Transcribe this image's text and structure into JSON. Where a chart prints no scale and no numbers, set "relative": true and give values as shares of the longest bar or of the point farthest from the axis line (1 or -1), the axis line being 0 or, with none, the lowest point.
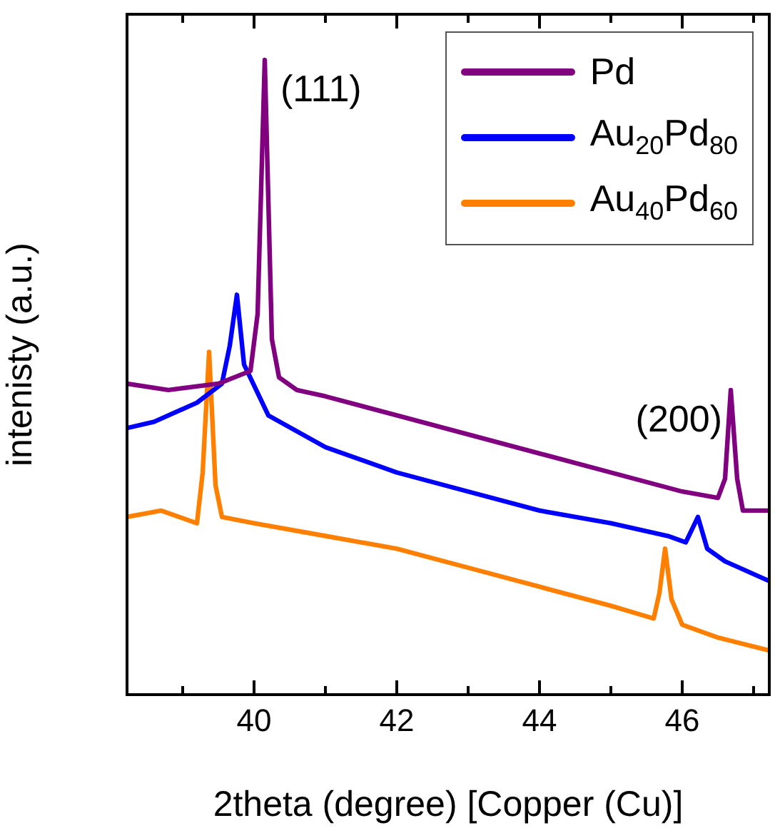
{
  "chart_data": {
    "type": "line",
    "relative": true,
    "xlabel": "2theta (degree) [Copper (Cu)]",
    "ylabel": "intenisty (a.u.)",
    "xlim": [
      38.22,
      47.22
    ],
    "xticks": [
      {
        "value": 39,
        "label": null
      },
      40,
      {
        "value": 41,
        "label": null
      },
      42,
      {
        "value": 43,
        "label": null
      },
      44,
      {
        "value": 45,
        "label": null
      },
      46,
      {
        "value": 47,
        "label": null
      }
    ],
    "tick_labels": "x",
    "legend": "top right",
    "line_style": "solid",
    "annotations": [
      {
        "text": "(111)",
        "x": 40.15,
        "y": 1.0
      },
      {
        "text": "(200)",
        "x": 46.68,
        "y": 0.48
      }
    ],
    "series": [
      {
        "name": "Pd",
        "color": "#800080",
        "x": [
          38.22,
          38.8,
          39.5,
          39.95,
          40.05,
          40.15,
          40.25,
          40.35,
          40.6,
          41,
          42,
          43,
          44,
          45,
          46,
          46.5,
          46.6,
          46.68,
          46.77,
          46.85,
          47.2
        ],
        "values": [
          0.49,
          0.48,
          0.49,
          0.51,
          0.6,
          1.0,
          0.56,
          0.5,
          0.48,
          0.47,
          0.44,
          0.41,
          0.38,
          0.35,
          0.32,
          0.31,
          0.34,
          0.48,
          0.34,
          0.29,
          0.29
        ]
      },
      {
        "name": "Au$_{20}$Pd$_{80}$",
        "color": "#0000ff",
        "x": [
          38.22,
          38.6,
          39.2,
          39.55,
          39.66,
          39.76,
          39.86,
          40.2,
          41,
          42,
          43,
          44,
          45,
          45.8,
          46.05,
          46.22,
          46.35,
          46.6,
          47.2
        ],
        "values": [
          0.42,
          0.43,
          0.46,
          0.49,
          0.55,
          0.63,
          0.52,
          0.44,
          0.39,
          0.35,
          0.32,
          0.29,
          0.27,
          0.25,
          0.24,
          0.28,
          0.23,
          0.21,
          0.18
        ]
      },
      {
        "name": "Au$_{40}$Pd$_{60}$",
        "color": "#ff8000",
        "x": [
          38.22,
          38.7,
          39.2,
          39.28,
          39.37,
          39.46,
          39.55,
          40,
          41,
          42,
          43,
          44,
          45,
          45.6,
          45.68,
          45.76,
          45.85,
          46,
          46.5,
          47.2
        ],
        "values": [
          0.28,
          0.29,
          0.27,
          0.35,
          0.54,
          0.33,
          0.28,
          0.27,
          0.25,
          0.23,
          0.2,
          0.17,
          0.14,
          0.12,
          0.16,
          0.23,
          0.15,
          0.11,
          0.09,
          0.07
        ]
      }
    ]
  }
}
